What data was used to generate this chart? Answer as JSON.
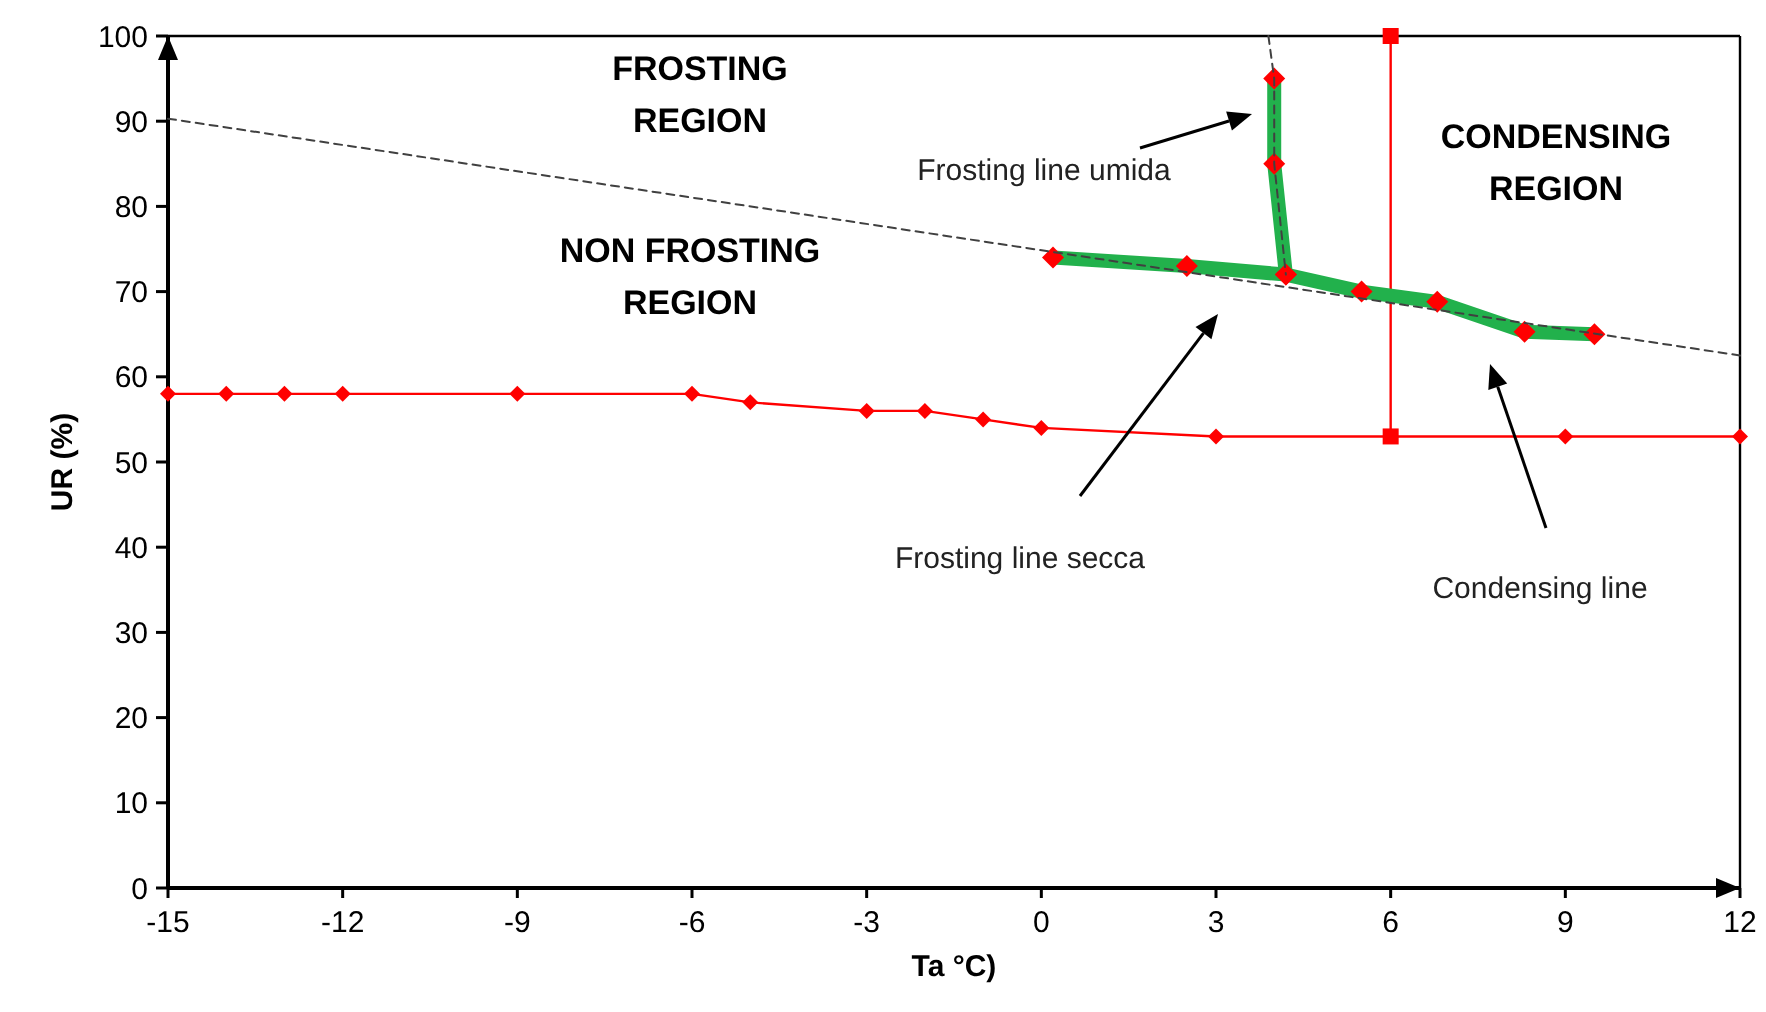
{
  "chart_data": {
    "type": "line",
    "xlabel": "Ta °C)",
    "ylabel": "UR (%)",
    "xlim": [
      -15,
      12
    ],
    "xticks": [
      -15,
      -12,
      -9,
      -6,
      -3,
      0,
      3,
      6,
      9,
      12
    ],
    "ylim": [
      0,
      100
    ],
    "yticks": [
      0,
      10,
      20,
      30,
      40,
      50,
      60,
      70,
      80,
      90,
      100
    ],
    "grid": false,
    "line_style": "solid",
    "series": [
      {
        "color": "#ff0000",
        "marker": "diamond",
        "x": [
          -15,
          -14,
          -13,
          -12,
          -9,
          -6,
          -5,
          -3,
          -2,
          -1,
          0,
          3,
          9,
          12
        ],
        "values": [
          58,
          58,
          58,
          58,
          58,
          58,
          57,
          56,
          56,
          55,
          54,
          53,
          53,
          53
        ]
      },
      {
        "color": "#ff0000",
        "marker": "square",
        "x": [
          6,
          6
        ],
        "values": [
          53,
          100
        ]
      },
      {
        "color": "#22b14c",
        "marker": "diamond",
        "colors": [
          "#ff0000",
          "#ff0000",
          "#ff0000",
          "#ff0000",
          "#ff0000",
          "#ff0000",
          "#ff0000"
        ],
        "x": [
          0.2,
          2.5,
          4.2,
          5.5,
          6.8,
          8.3,
          9.5
        ],
        "values": [
          74,
          73,
          72,
          70,
          68.8,
          65.3,
          65
        ]
      },
      {
        "color": "#22b14c",
        "marker": "diamond",
        "colors": [
          "#ff0000",
          "#ff0000",
          "#ff0000"
        ],
        "x": [
          4,
          4,
          4.2
        ],
        "values": [
          95,
          85,
          72
        ]
      },
      {
        "color": "#404040",
        "marker": "none",
        "line_style": "dashed",
        "x": [
          -15,
          12
        ],
        "values": [
          90.3,
          62.5
        ]
      },
      {
        "color": "#404040",
        "marker": "none",
        "line_style": "dashed",
        "x": [
          3.9,
          4,
          4,
          4.2
        ],
        "values": [
          100,
          95,
          85,
          72
        ]
      }
    ],
    "annotations": [
      "FROSTING\nREGION",
      "NON FROSTING\nREGION",
      "CONDENSING\nREGION",
      "Frosting line umida",
      "Frosting line secca",
      "Condensing line"
    ]
  }
}
